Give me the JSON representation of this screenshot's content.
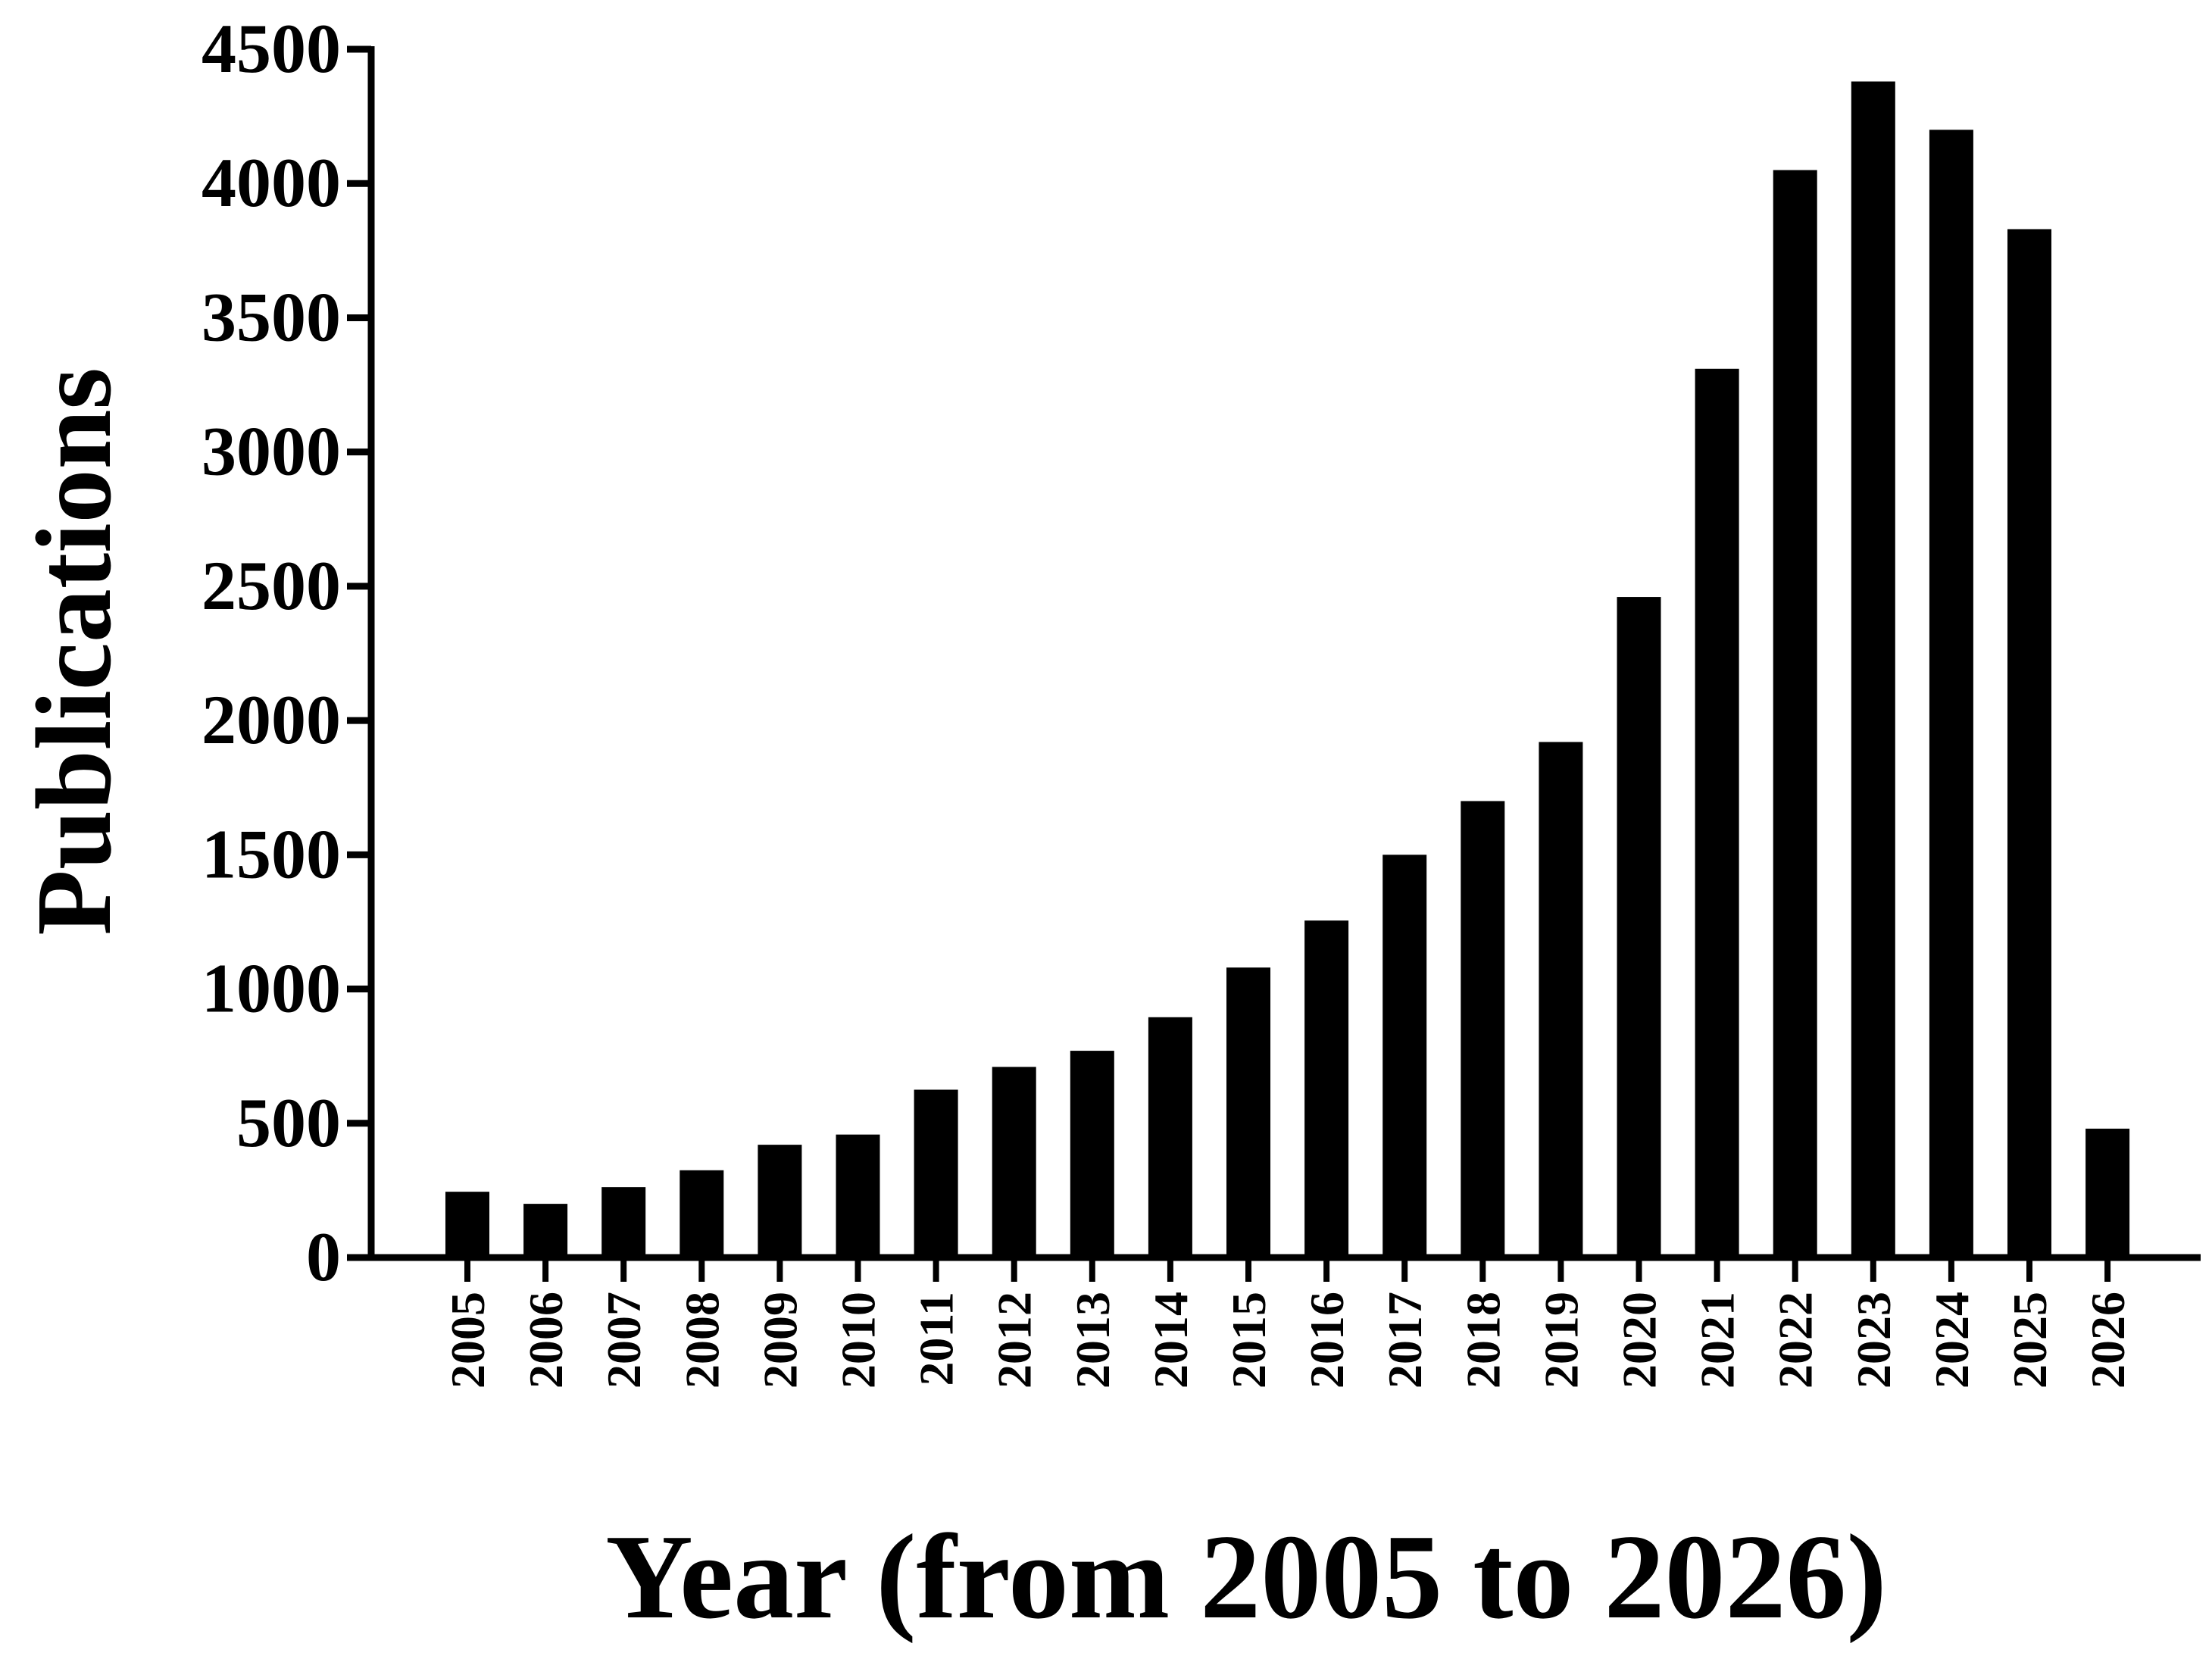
{
  "chart_data": {
    "type": "bar",
    "title": "",
    "xlabel": "Year (from 2005 to 2026)",
    "ylabel": "Publications",
    "ylim": [
      0,
      4500
    ],
    "yticks": [
      "0",
      "500",
      "1000",
      "1500",
      "2000",
      "2500",
      "3000",
      "3500",
      "4000",
      "4500"
    ],
    "categories": [
      "2005",
      "2006",
      "2007",
      "2008",
      "2009",
      "2010",
      "2011",
      "2012",
      "2013",
      "2014",
      "2015",
      "2016",
      "2017",
      "2018",
      "2019",
      "2020",
      "2021",
      "2022",
      "2023",
      "2024",
      "2025",
      "2026"
    ],
    "values": [
      245,
      200,
      262,
      325,
      420,
      458,
      625,
      710,
      770,
      895,
      1080,
      1255,
      1500,
      1700,
      1920,
      2460,
      3310,
      4050,
      4380,
      4200,
      3830,
      480
    ],
    "bar_color": "#000000",
    "grid": false,
    "legend": "none"
  }
}
